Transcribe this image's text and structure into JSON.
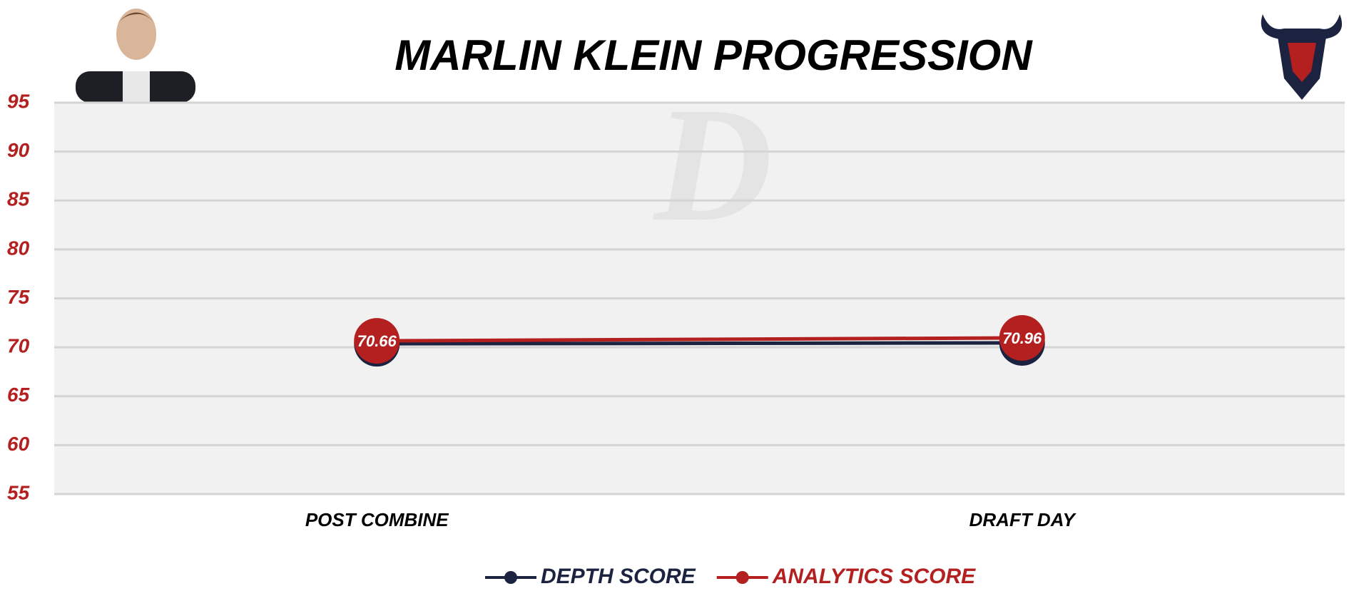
{
  "chart_data": {
    "type": "line",
    "title": "MARLIN KLEIN PROGRESSION",
    "categories": [
      "POST COMBINE",
      "DRAFT DAY"
    ],
    "series": [
      {
        "name": "DEPTH SCORE",
        "color": "#1b2340",
        "values": [
          70.36,
          70.45
        ]
      },
      {
        "name": "ANALYTICS SCORE",
        "color": "#b3201f",
        "values": [
          70.66,
          70.96
        ]
      }
    ],
    "ylim": [
      55,
      95
    ],
    "yticks": [
      55,
      60,
      65,
      70,
      75,
      80,
      85,
      90,
      95
    ],
    "grid": true
  }
}
